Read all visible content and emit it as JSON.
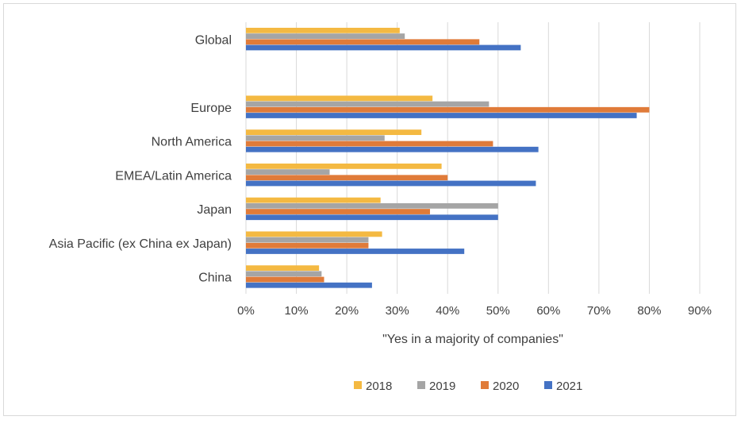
{
  "chart_data": {
    "type": "bar",
    "orientation": "horizontal",
    "categories": [
      "Global",
      "",
      "Europe",
      "North America",
      "EMEA/Latin America",
      "Japan",
      "Asia Pacific (ex China ex Japan)",
      "China"
    ],
    "series": [
      {
        "name": "2018",
        "color": "#F4B942",
        "values": [
          30.5,
          null,
          37,
          34.8,
          38.8,
          26.7,
          27,
          14.5
        ]
      },
      {
        "name": "2019",
        "color": "#A5A5A5",
        "values": [
          31.5,
          null,
          48.2,
          27.5,
          16.6,
          50,
          24.3,
          15
        ]
      },
      {
        "name": "2020",
        "color": "#E07B39",
        "values": [
          46.3,
          null,
          80,
          49,
          40,
          36.5,
          24.3,
          15.5
        ]
      },
      {
        "name": "2021",
        "color": "#4472C4",
        "values": [
          54.5,
          null,
          77.5,
          58,
          57.5,
          50,
          43.3,
          25
        ]
      }
    ],
    "xlabel": "\"Yes  in a majority of companies\"",
    "ylabel": "",
    "title": "",
    "xlim": [
      0,
      90
    ],
    "xticks": [
      "0%",
      "10%",
      "20%",
      "30%",
      "40%",
      "50%",
      "60%",
      "70%",
      "80%",
      "90%"
    ],
    "grid": true,
    "legend_position": "bottom"
  }
}
